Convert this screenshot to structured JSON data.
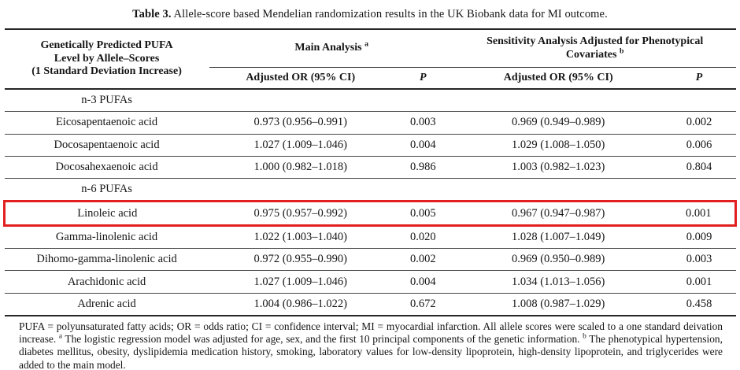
{
  "title": {
    "bold": "Table 3.",
    "rest": "Allele-score based Mendelian randomization results in the UK Biobank data for MI outcome."
  },
  "table": {
    "stub_header_lines": [
      "Genetically Predicted PUFA",
      "Level by Allele–Scores",
      "(1 Standard Deviation Increase)"
    ],
    "groups": [
      {
        "label": "Main Analysis",
        "sup": "a"
      },
      {
        "label": "Sensitivity Analysis Adjusted for Phenotypical Covariates",
        "sup": "b"
      }
    ],
    "subheaders": {
      "or": "Adjusted OR (95% CI)",
      "p": "P"
    },
    "highlight_color": "#e21f1f",
    "rows": [
      {
        "type": "section",
        "name": "n-3 PUFAs"
      },
      {
        "type": "data",
        "name": "Eicosapentaenoic acid",
        "or_main": "0.973 (0.956–0.991)",
        "p_main": "0.003",
        "or_sens": "0.969 (0.949–0.989)",
        "p_sens": "0.002"
      },
      {
        "type": "data",
        "name": "Docosapentaenoic acid",
        "or_main": "1.027 (1.009–1.046)",
        "p_main": "0.004",
        "or_sens": "1.029 (1.008–1.050)",
        "p_sens": "0.006"
      },
      {
        "type": "data",
        "name": "Docosahexaenoic acid",
        "or_main": "1.000 (0.982–1.018)",
        "p_main": "0.986",
        "or_sens": "1.003 (0.982–1.023)",
        "p_sens": "0.804"
      },
      {
        "type": "section",
        "name": "n-6 PUFAs"
      },
      {
        "type": "data",
        "name": "Linoleic acid",
        "highlighted": true,
        "or_main": "0.975 (0.957–0.992)",
        "p_main": "0.005",
        "or_sens": "0.967 (0.947–0.987)",
        "p_sens": "0.001"
      },
      {
        "type": "data",
        "name": "Gamma-linolenic acid",
        "or_main": "1.022 (1.003–1.040)",
        "p_main": "0.020",
        "or_sens": "1.028 (1.007–1.049)",
        "p_sens": "0.009"
      },
      {
        "type": "data",
        "name": "Dihomo-gamma-linolenic acid",
        "or_main": "0.972 (0.955–0.990)",
        "p_main": "0.002",
        "or_sens": "0.969 (0.950–0.989)",
        "p_sens": "0.003"
      },
      {
        "type": "data",
        "name": "Arachidonic acid",
        "or_main": "1.027 (1.009–1.046)",
        "p_main": "0.004",
        "or_sens": "1.034 (1.013–1.056)",
        "p_sens": "0.001"
      },
      {
        "type": "data",
        "name": "Adrenic acid",
        "or_main": "1.004 (0.986–1.022)",
        "p_main": "0.672",
        "or_sens": "1.008 (0.987–1.029)",
        "p_sens": "0.458"
      }
    ]
  },
  "footnote": {
    "segments": [
      {
        "text": "PUFA = polyunsaturated fatty acids; OR = odds ratio; CI = confidence interval; MI = myocardial infarction. All allele scores were scaled to a one standard deivation increase. "
      },
      {
        "text": "a",
        "sup": true
      },
      {
        "text": " The logistic regression model was adjusted for age, sex, and the first 10 principal components of the genetic information. "
      },
      {
        "text": "b",
        "sup": true
      },
      {
        "text": " The phenotypical hypertension, diabetes mellitus, obesity, dyslipidemia medication history, smoking, laboratory values for low-density lipoprotein, high-density lipoprotein, and triglycerides were added to the main model."
      }
    ]
  }
}
